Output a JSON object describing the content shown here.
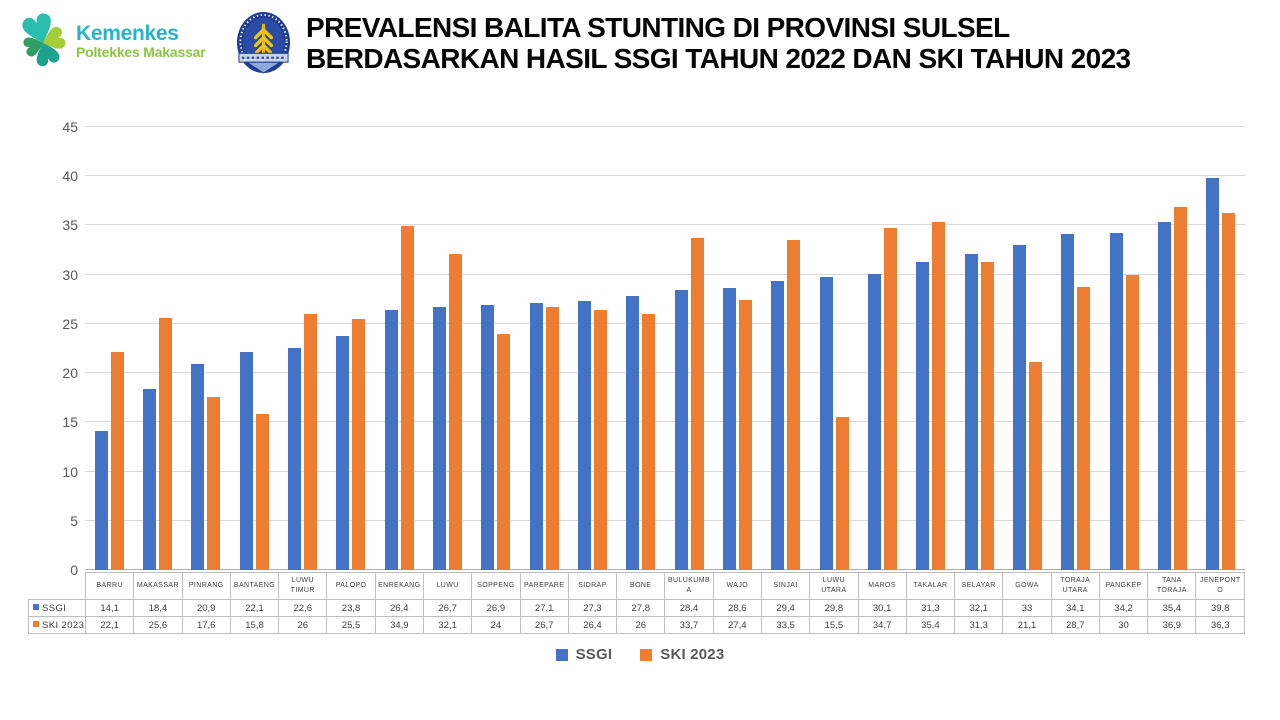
{
  "header": {
    "logo_kemenkes": {
      "title": "Kemenkes",
      "subtitle": "Poltekkes Makassar"
    },
    "title_line1": "PREVALENSI BALITA STUNTING DI PROVINSI SULSEL",
    "title_line2": "BERDASARKAN HASIL SSGI TAHUN 2022 DAN SKI TAHUN 2023"
  },
  "chart_data": {
    "type": "bar",
    "title": "PREVALENSI BALITA STUNTING DI PROVINSI SULSEL BERDASARKAN HASIL SSGI TAHUN 2022 DAN SKI TAHUN 2023",
    "categories": [
      "BARRU",
      "MAKASSAR",
      "PINRANG",
      "BANTAENG",
      "LUWU TIMUR",
      "PALOPO",
      "ENREKANG",
      "LUWU",
      "SOPPENG",
      "PAREPARE",
      "SIDRAP",
      "BONE",
      "BULUKUMBA",
      "WAJO",
      "SINJAI",
      "LUWU UTARA",
      "MAROS",
      "TAKALAR",
      "SELAYAR",
      "GOWA",
      "TORAJA UTARA",
      "PANGKEP",
      "TANA TORAJA",
      "JENEPONTO"
    ],
    "series": [
      {
        "name": "SSGI",
        "color": "#4472C4",
        "values": [
          14.1,
          18.4,
          20.9,
          22.1,
          22.6,
          23.8,
          26.4,
          26.7,
          26.9,
          27.1,
          27.3,
          27.8,
          28.4,
          28.6,
          29.4,
          29.8,
          30.1,
          31.3,
          32.1,
          33,
          34.1,
          34.2,
          35.4,
          39.8
        ]
      },
      {
        "name": "SKI 2023",
        "color": "#ED7D31",
        "values": [
          22.1,
          25.6,
          17.6,
          15.8,
          26,
          25.5,
          34.9,
          32.1,
          24,
          26.7,
          26.4,
          26,
          33.7,
          27.4,
          33.5,
          15.5,
          34.7,
          35.4,
          31.3,
          21.1,
          28.7,
          30,
          36.9,
          36.3
        ]
      }
    ],
    "xlabel": "",
    "ylabel": "",
    "ylim": [
      0,
      45
    ],
    "ytick_step": 5,
    "grid": true,
    "legend_position": "bottom",
    "data_table_shown": true,
    "decimal_separator": ","
  },
  "colors": {
    "series_ssgi": "#4472C4",
    "series_ski": "#ED7D31",
    "gridline": "#D9D9D9",
    "axis_text": "#595959",
    "table_border": "#BFBFBF",
    "logo_teal": "#2BBDAD",
    "logo_green": "#2F9E62",
    "logo_lime": "#A6CE38",
    "emblem_navy": "#203D92",
    "emblem_gold": "#F0C419"
  }
}
